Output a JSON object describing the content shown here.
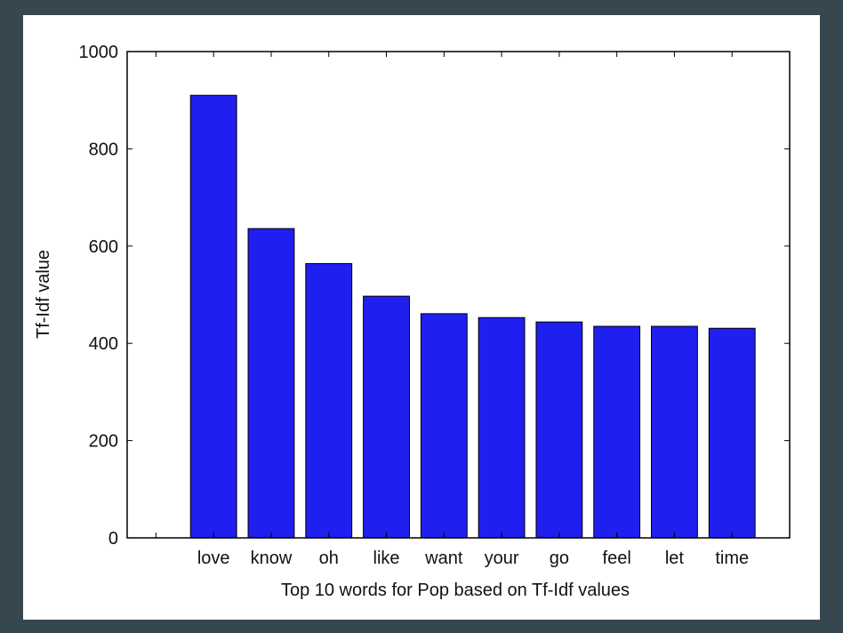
{
  "colors": {
    "background": "#37474f",
    "panel": "#ffffff",
    "bar_fill": "#1f1fef",
    "bar_stroke": "#000000",
    "axis": "#000000"
  },
  "chart_data": {
    "type": "bar",
    "title": "",
    "xlabel": "Top 10 words for Pop based on Tf-Idf values",
    "ylabel": "Tf-Idf value",
    "categories": [
      "love",
      "know",
      "oh",
      "like",
      "want",
      "your",
      "go",
      "feel",
      "let",
      "time"
    ],
    "values": [
      910,
      636,
      564,
      497,
      461,
      453,
      444,
      435,
      435,
      431
    ],
    "ylim": [
      0,
      1000
    ],
    "yticks": [
      "0",
      "200",
      "400",
      "600",
      "800",
      "1000"
    ],
    "grid": false,
    "legend": "none"
  }
}
